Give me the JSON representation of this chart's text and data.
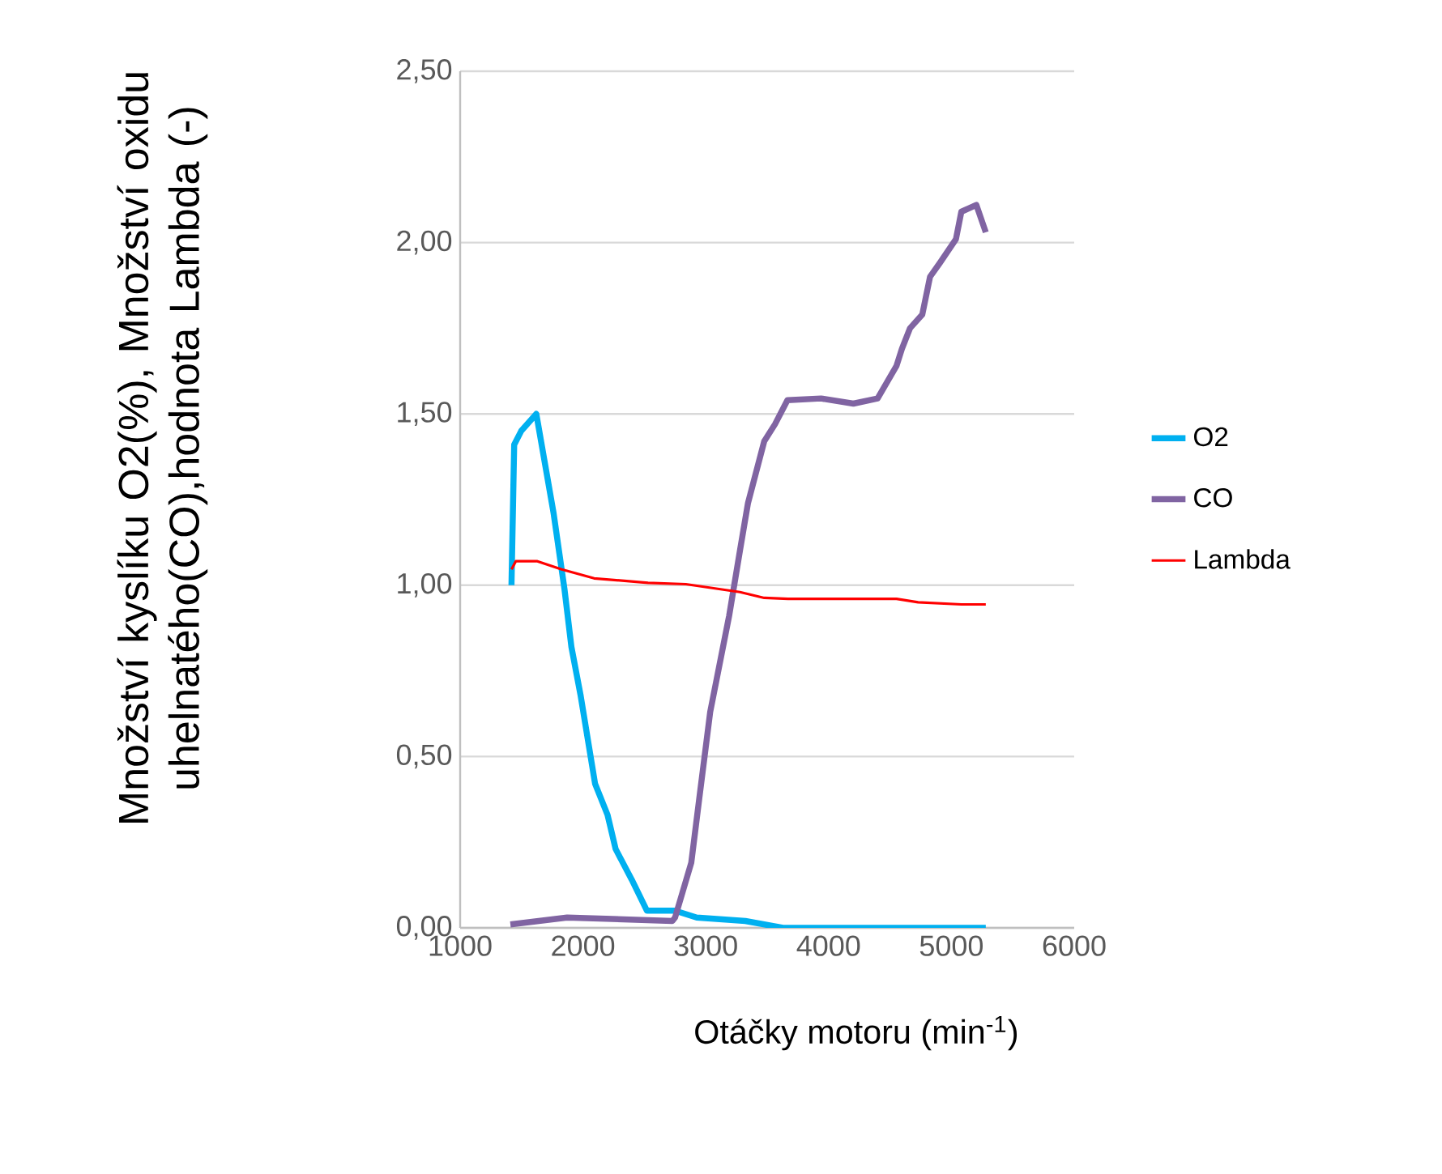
{
  "chart_data": {
    "type": "line",
    "xlabel": "Otáčky motoru (min$^{-1}$)",
    "ylabel": "Množství kyslíku O2(%), Množství oxidu uhelnatého(CO),hodnota Lambda (-)",
    "xlim": [
      1000,
      6000
    ],
    "xticks": [
      1000,
      2000,
      3000,
      4000,
      5000,
      6000
    ],
    "ylim": [
      0,
      2.5
    ],
    "yticks": [
      {
        "value": 0,
        "label": "0,00"
      },
      {
        "value": 0.5,
        "label": "0,50"
      },
      {
        "value": 1,
        "label": "1,00"
      },
      {
        "value": 1.5,
        "label": "1,50"
      },
      {
        "value": 2,
        "label": "2,00"
      },
      {
        "value": 2.5,
        "label": "2,50"
      }
    ],
    "grid": "y",
    "legend": "right",
    "series": [
      {
        "name": "O2",
        "color": "#00b0f0",
        "x": [
          1418,
          1440,
          1497,
          1620,
          1761,
          1849,
          1906,
          1980,
          2099,
          2200,
          2266,
          2398,
          2521,
          2749,
          2926,
          3322,
          3629,
          4500,
          5280
        ],
        "values": [
          1.0,
          1.41,
          1.45,
          1.5,
          1.21,
          0.99,
          0.82,
          0.68,
          0.42,
          0.33,
          0.23,
          0.14,
          0.05,
          0.05,
          0.03,
          0.02,
          0.0,
          0.0,
          0.0
        ]
      },
      {
        "name": "CO",
        "color": "#8064a2",
        "x": [
          1409,
          1871,
          2728,
          2750,
          2882,
          2948,
          3036,
          3102,
          3190,
          3278,
          3344,
          3476,
          3564,
          3665,
          3938,
          4202,
          4399,
          4553,
          4597,
          4663,
          4763,
          4826,
          4905,
          5037,
          5081,
          5203,
          5280
        ],
        "values": [
          0.01,
          0.03,
          0.02,
          0.03,
          0.19,
          0.38,
          0.63,
          0.75,
          0.91,
          1.1,
          1.24,
          1.42,
          1.47,
          1.54,
          1.545,
          1.53,
          1.545,
          1.64,
          1.69,
          1.75,
          1.79,
          1.9,
          1.94,
          2.01,
          2.09,
          2.11,
          2.03
        ]
      },
      {
        "name": "Lambda",
        "color": "#ff0000",
        "x": [
          1418,
          1453,
          1629,
          1827,
          2091,
          2530,
          2838,
          3278,
          3476,
          3670,
          4553,
          4729,
          5081,
          5280
        ],
        "values": [
          1.046,
          1.07,
          1.07,
          1.046,
          1.02,
          1.007,
          1.003,
          0.98,
          0.963,
          0.96,
          0.96,
          0.95,
          0.944,
          0.944
        ]
      }
    ]
  }
}
